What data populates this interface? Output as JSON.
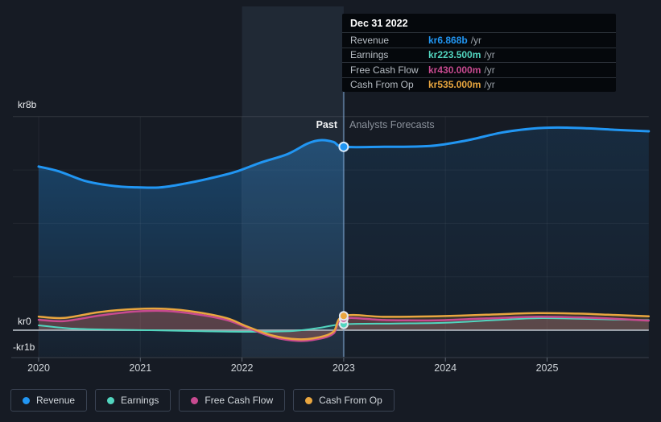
{
  "tooltip": {
    "title": "Dec 31 2022",
    "rows": [
      {
        "label": "Revenue",
        "value": "kr6.868b",
        "suffix": "/yr"
      },
      {
        "label": "Earnings",
        "value": "kr223.500m",
        "suffix": "/yr"
      },
      {
        "label": "Free Cash Flow",
        "value": "kr430.000m",
        "suffix": "/yr"
      },
      {
        "label": "Cash From Op",
        "value": "kr535.000m",
        "suffix": "/yr"
      }
    ]
  },
  "annotations": {
    "past": "Past",
    "forecast": "Analysts Forecasts"
  },
  "y_axis": [
    "kr8b",
    "kr0",
    "-kr1b"
  ],
  "legend": {
    "items": [
      {
        "label": "Revenue"
      },
      {
        "label": "Earnings"
      },
      {
        "label": "Free Cash Flow"
      },
      {
        "label": "Cash From Op"
      }
    ]
  },
  "colors": {
    "page_bg": "#161b24",
    "tooltip_bg": "#05080c",
    "revenue": "#2196f3",
    "earnings": "#52d5bf",
    "free_cash_flow": "#c84a90",
    "cash_from_op": "#e9a63f",
    "zero_line": "#aeb5bd",
    "axis_line": "#39414d",
    "divider": "rgba(125,165,210,0.55)",
    "highlight_band": "rgba(125,165,210,0.10)",
    "text_primary": "#f2f4f6",
    "text_secondary": "#9aa1a8"
  },
  "chart_data": {
    "type": "line",
    "title": "Past and forecast financials",
    "unit": "kr (billions)",
    "x_domain": [
      2020,
      2026
    ],
    "ylim": [
      -1,
      8.6
    ],
    "grid": true,
    "legend_position": "bottom",
    "x_ticks": [
      {
        "x": 2020,
        "label": "2020"
      },
      {
        "x": 2021,
        "label": "2021"
      },
      {
        "x": 2022,
        "label": "2022"
      },
      {
        "x": 2023,
        "label": "2023"
      },
      {
        "x": 2024,
        "label": "2024"
      },
      {
        "x": 2025,
        "label": "2025"
      }
    ],
    "y_gridlines": [
      {
        "value": 8,
        "label": "kr8b"
      },
      {
        "value": 6,
        "label": ""
      },
      {
        "value": 4,
        "label": ""
      },
      {
        "value": 2,
        "label": ""
      },
      {
        "value": 0,
        "label": "kr0"
      },
      {
        "value": -1,
        "label": "-kr1b"
      }
    ],
    "divider_x": 2023,
    "highlight_band": [
      2022,
      2023
    ],
    "series": [
      {
        "name": "Revenue",
        "color": "#2196f3",
        "width": 3,
        "fill": "bottom",
        "past": [
          [
            2020,
            6.13
          ],
          [
            2020.2,
            5.95
          ],
          [
            2020.45,
            5.6
          ],
          [
            2020.7,
            5.42
          ],
          [
            2020.95,
            5.35
          ],
          [
            2021.2,
            5.35
          ],
          [
            2021.45,
            5.5
          ],
          [
            2021.7,
            5.7
          ],
          [
            2021.95,
            5.95
          ],
          [
            2022.2,
            6.3
          ],
          [
            2022.45,
            6.6
          ],
          [
            2022.65,
            7.0
          ],
          [
            2022.78,
            7.12
          ],
          [
            2022.9,
            7.05
          ],
          [
            2023,
            6.868
          ]
        ],
        "forecast": [
          [
            2023,
            6.868
          ],
          [
            2023.4,
            6.87
          ],
          [
            2023.85,
            6.9
          ],
          [
            2024.2,
            7.1
          ],
          [
            2024.55,
            7.4
          ],
          [
            2024.85,
            7.55
          ],
          [
            2025.1,
            7.59
          ],
          [
            2025.4,
            7.56
          ],
          [
            2025.7,
            7.5
          ],
          [
            2026,
            7.45
          ]
        ]
      },
      {
        "name": "Earnings",
        "color": "#52d5bf",
        "width": 2,
        "fill": "zero",
        "fill_color": "rgba(82,213,191,0.10)",
        "past": [
          [
            2020,
            0.18
          ],
          [
            2020.3,
            0.07
          ],
          [
            2020.7,
            0.02
          ],
          [
            2021.1,
            0.0
          ],
          [
            2021.6,
            -0.04
          ],
          [
            2022.1,
            -0.06
          ],
          [
            2022.5,
            -0.03
          ],
          [
            2022.75,
            0.08
          ],
          [
            2023,
            0.2235
          ]
        ],
        "forecast": [
          [
            2023,
            0.2235
          ],
          [
            2023.5,
            0.25
          ],
          [
            2024,
            0.28
          ],
          [
            2024.5,
            0.38
          ],
          [
            2024.9,
            0.45
          ],
          [
            2025.3,
            0.43
          ],
          [
            2025.65,
            0.4
          ],
          [
            2026,
            0.38
          ]
        ]
      },
      {
        "name": "Free Cash Flow",
        "color": "#c84a90",
        "width": 2.5,
        "fill": "zero",
        "fill_color": "rgba(200,74,144,0.22)",
        "past": [
          [
            2020,
            0.39
          ],
          [
            2020.25,
            0.34
          ],
          [
            2020.6,
            0.55
          ],
          [
            2020.95,
            0.7
          ],
          [
            2021.25,
            0.72
          ],
          [
            2021.55,
            0.6
          ],
          [
            2021.85,
            0.38
          ],
          [
            2022.05,
            0.1
          ],
          [
            2022.3,
            -0.25
          ],
          [
            2022.55,
            -0.4
          ],
          [
            2022.75,
            -0.33
          ],
          [
            2022.9,
            -0.12
          ],
          [
            2023,
            0.43
          ]
        ],
        "forecast": [
          [
            2023,
            0.43
          ],
          [
            2023.4,
            0.38
          ],
          [
            2023.9,
            0.37
          ],
          [
            2024.4,
            0.44
          ],
          [
            2024.9,
            0.5
          ],
          [
            2025.3,
            0.48
          ],
          [
            2025.6,
            0.44
          ],
          [
            2026,
            0.36
          ]
        ]
      },
      {
        "name": "Cash From Op",
        "color": "#e9a63f",
        "width": 2.5,
        "fill": "zero",
        "fill_color": "rgba(233,166,63,0.16)",
        "past": [
          [
            2020,
            0.51
          ],
          [
            2020.25,
            0.46
          ],
          [
            2020.6,
            0.68
          ],
          [
            2020.95,
            0.79
          ],
          [
            2021.25,
            0.8
          ],
          [
            2021.55,
            0.68
          ],
          [
            2021.85,
            0.45
          ],
          [
            2022.05,
            0.14
          ],
          [
            2022.3,
            -0.2
          ],
          [
            2022.55,
            -0.34
          ],
          [
            2022.75,
            -0.27
          ],
          [
            2022.9,
            -0.05
          ],
          [
            2023,
            0.535
          ]
        ],
        "forecast": [
          [
            2023,
            0.535
          ],
          [
            2023.4,
            0.5
          ],
          [
            2023.9,
            0.52
          ],
          [
            2024.4,
            0.58
          ],
          [
            2024.9,
            0.64
          ],
          [
            2025.3,
            0.62
          ],
          [
            2025.6,
            0.58
          ],
          [
            2026,
            0.52
          ]
        ]
      }
    ],
    "markers": [
      {
        "series": "Revenue",
        "x": 2023,
        "value": 6.868
      },
      {
        "series": "Earnings",
        "x": 2023,
        "value": 0.2235
      },
      {
        "series": "Free Cash Flow",
        "x": 2023,
        "value": 0.43
      },
      {
        "series": "Cash From Op",
        "x": 2023,
        "value": 0.535
      }
    ]
  }
}
